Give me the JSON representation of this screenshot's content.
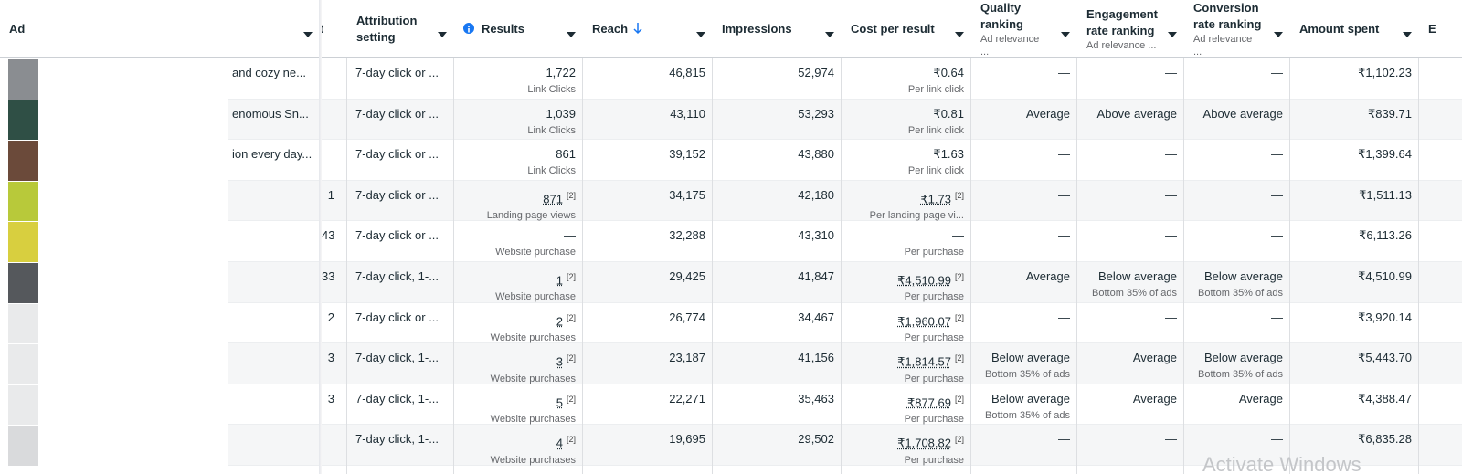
{
  "header": {
    "columns": [
      {
        "label": "Ad"
      },
      {
        "label": "t"
      },
      {
        "label": "Attribution setting"
      },
      {
        "label": "Results"
      },
      {
        "label": "Reach"
      },
      {
        "label": "Impressions"
      },
      {
        "label": "Cost per result"
      },
      {
        "label": "Quality ranking",
        "sub": "Ad relevance ..."
      },
      {
        "label": "Engagement rate ranking",
        "sub": "Ad relevance ..."
      },
      {
        "label": "Conversion rate ranking",
        "sub": "Ad relevance ..."
      },
      {
        "label": "Amount spent"
      },
      {
        "label": "E"
      }
    ]
  },
  "table": {
    "rows": [
      {
        "ad": "and cozy ne...",
        "attribution": "7-day click or ...",
        "results": {
          "value": "1,722",
          "sub": "Link Clicks"
        },
        "reach": "46,815",
        "impressions": "52,974",
        "cost_per_result": {
          "value": "₹0.64",
          "sub": "Per link click"
        },
        "quality_ranking": {
          "value": "—"
        },
        "engagement_rate_ranking": {
          "value": "—"
        },
        "conversion_rate_ranking": {
          "value": "—"
        },
        "amount_spent": "₹1,102.23"
      },
      {
        "ad": "enomous Sn...",
        "attribution": "7-day click or ...",
        "results": {
          "value": "1,039",
          "sub": "Link Clicks"
        },
        "reach": "43,110",
        "impressions": "53,293",
        "cost_per_result": {
          "value": "₹0.81",
          "sub": "Per link click"
        },
        "quality_ranking": {
          "value": "Average"
        },
        "engagement_rate_ranking": {
          "value": "Above average"
        },
        "conversion_rate_ranking": {
          "value": "Above average"
        },
        "amount_spent": "₹839.71"
      },
      {
        "ad": "ion every day...",
        "attribution": "7-day click or ...",
        "results": {
          "value": "861",
          "sub": "Link Clicks"
        },
        "reach": "39,152",
        "impressions": "43,880",
        "cost_per_result": {
          "value": "₹1.63",
          "sub": "Per link click"
        },
        "quality_ranking": {
          "value": "—"
        },
        "engagement_rate_ranking": {
          "value": "—"
        },
        "conversion_rate_ranking": {
          "value": "—"
        },
        "amount_spent": "₹1,399.64"
      },
      {
        "partial": "1",
        "attribution": "7-day click or ...",
        "results": {
          "value": "871",
          "note": "[2]",
          "sub": "Landing page views"
        },
        "reach": "34,175",
        "impressions": "42,180",
        "cost_per_result": {
          "value": "₹1.73",
          "note": "[2]",
          "sub": "Per landing page vi..."
        },
        "quality_ranking": {
          "value": "—"
        },
        "engagement_rate_ranking": {
          "value": "—"
        },
        "conversion_rate_ranking": {
          "value": "—"
        },
        "amount_spent": "₹1,511.13"
      },
      {
        "partial": "43",
        "attribution": "7-day click or ...",
        "results": {
          "value": "—",
          "sub": "Website purchase"
        },
        "reach": "32,288",
        "impressions": "43,310",
        "cost_per_result": {
          "value": "—",
          "sub": "Per purchase"
        },
        "quality_ranking": {
          "value": "—"
        },
        "engagement_rate_ranking": {
          "value": "—"
        },
        "conversion_rate_ranking": {
          "value": "—"
        },
        "amount_spent": "₹6,113.26"
      },
      {
        "partial": "33",
        "attribution": "7-day click, 1-...",
        "results": {
          "value": "1",
          "note": "[2]",
          "sub": "Website purchase"
        },
        "reach": "29,425",
        "impressions": "41,847",
        "cost_per_result": {
          "value": "₹4,510.99",
          "note": "[2]",
          "sub": "Per purchase"
        },
        "quality_ranking": {
          "value": "Average"
        },
        "engagement_rate_ranking": {
          "value": "Below average",
          "sub": "Bottom 35% of ads"
        },
        "conversion_rate_ranking": {
          "value": "Below average",
          "sub": "Bottom 35% of ads"
        },
        "amount_spent": "₹4,510.99"
      },
      {
        "partial": "2",
        "attribution": "7-day click or ...",
        "results": {
          "value": "2",
          "note": "[2]",
          "sub": "Website purchases"
        },
        "reach": "26,774",
        "impressions": "34,467",
        "cost_per_result": {
          "value": "₹1,960.07",
          "note": "[2]",
          "sub": "Per purchase"
        },
        "quality_ranking": {
          "value": "—"
        },
        "engagement_rate_ranking": {
          "value": "—"
        },
        "conversion_rate_ranking": {
          "value": "—"
        },
        "amount_spent": "₹3,920.14"
      },
      {
        "partial": "3",
        "attribution": "7-day click, 1-...",
        "results": {
          "value": "3",
          "note": "[2]",
          "sub": "Website purchases"
        },
        "reach": "23,187",
        "impressions": "41,156",
        "cost_per_result": {
          "value": "₹1,814.57",
          "note": "[2]",
          "sub": "Per purchase"
        },
        "quality_ranking": {
          "value": "Below average",
          "sub": "Bottom 35% of ads"
        },
        "engagement_rate_ranking": {
          "value": "Average"
        },
        "conversion_rate_ranking": {
          "value": "Below average",
          "sub": "Bottom 35% of ads"
        },
        "amount_spent": "₹5,443.70"
      },
      {
        "partial": "3",
        "attribution": "7-day click, 1-...",
        "results": {
          "value": "5",
          "note": "[2]",
          "sub": "Website purchases"
        },
        "reach": "22,271",
        "impressions": "35,463",
        "cost_per_result": {
          "value": "₹877.69",
          "note": "[2]",
          "sub": "Per purchase"
        },
        "quality_ranking": {
          "value": "Below average",
          "sub": "Bottom 35% of ads"
        },
        "engagement_rate_ranking": {
          "value": "Average"
        },
        "conversion_rate_ranking": {
          "value": "Average"
        },
        "amount_spent": "₹4,388.47"
      },
      {
        "attribution": "7-day click, 1-...",
        "results": {
          "value": "4",
          "note": "[2]",
          "sub": "Website purchases"
        },
        "reach": "19,695",
        "impressions": "29,502",
        "cost_per_result": {
          "value": "₹1,708.82",
          "note": "[2]",
          "sub": "Per purchase"
        },
        "quality_ranking": {
          "value": "—"
        },
        "engagement_rate_ranking": {
          "value": "—"
        },
        "conversion_rate_ranking": {
          "value": "—"
        },
        "amount_spent": "₹6,835.28"
      }
    ]
  },
  "watermark": "Activate Windows"
}
